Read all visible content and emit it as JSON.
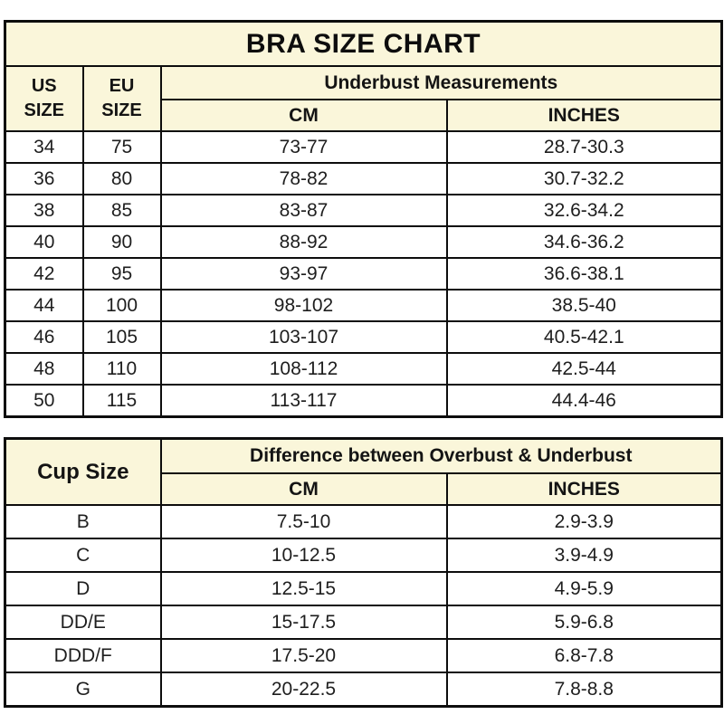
{
  "colors": {
    "header_background": "#faf6da",
    "border": "#0d0d0d",
    "data_text": "#1e1e1e",
    "page_background": "#ffffff"
  },
  "chart_data": [
    {
      "type": "table",
      "title": "BRA SIZE CHART",
      "header": {
        "col1": "US\nSIZE",
        "col2": "EU\nSIZE",
        "group": "Underbust Measurements",
        "sub": [
          "CM",
          "INCHES"
        ]
      },
      "rows": [
        [
          "34",
          "75",
          "73-77",
          "28.7-30.3"
        ],
        [
          "36",
          "80",
          "78-82",
          "30.7-32.2"
        ],
        [
          "38",
          "85",
          "83-87",
          "32.6-34.2"
        ],
        [
          "40",
          "90",
          "88-92",
          "34.6-36.2"
        ],
        [
          "42",
          "95",
          "93-97",
          "36.6-38.1"
        ],
        [
          "44",
          "100",
          "98-102",
          "38.5-40"
        ],
        [
          "46",
          "105",
          "103-107",
          "40.5-42.1"
        ],
        [
          "48",
          "110",
          "108-112",
          "42.5-44"
        ],
        [
          "50",
          "115",
          "113-117",
          "44.4-46"
        ]
      ]
    },
    {
      "type": "table",
      "header": {
        "col1": "Cup Size",
        "group": "Difference between Overbust & Underbust",
        "sub": [
          "CM",
          "INCHES"
        ]
      },
      "rows": [
        [
          "B",
          "7.5-10",
          "2.9-3.9"
        ],
        [
          "C",
          "10-12.5",
          "3.9-4.9"
        ],
        [
          "D",
          "12.5-15",
          "4.9-5.9"
        ],
        [
          "DD/E",
          "15-17.5",
          "5.9-6.8"
        ],
        [
          "DDD/F",
          "17.5-20",
          "6.8-7.8"
        ],
        [
          "G",
          "20-22.5",
          "7.8-8.8"
        ]
      ]
    }
  ]
}
